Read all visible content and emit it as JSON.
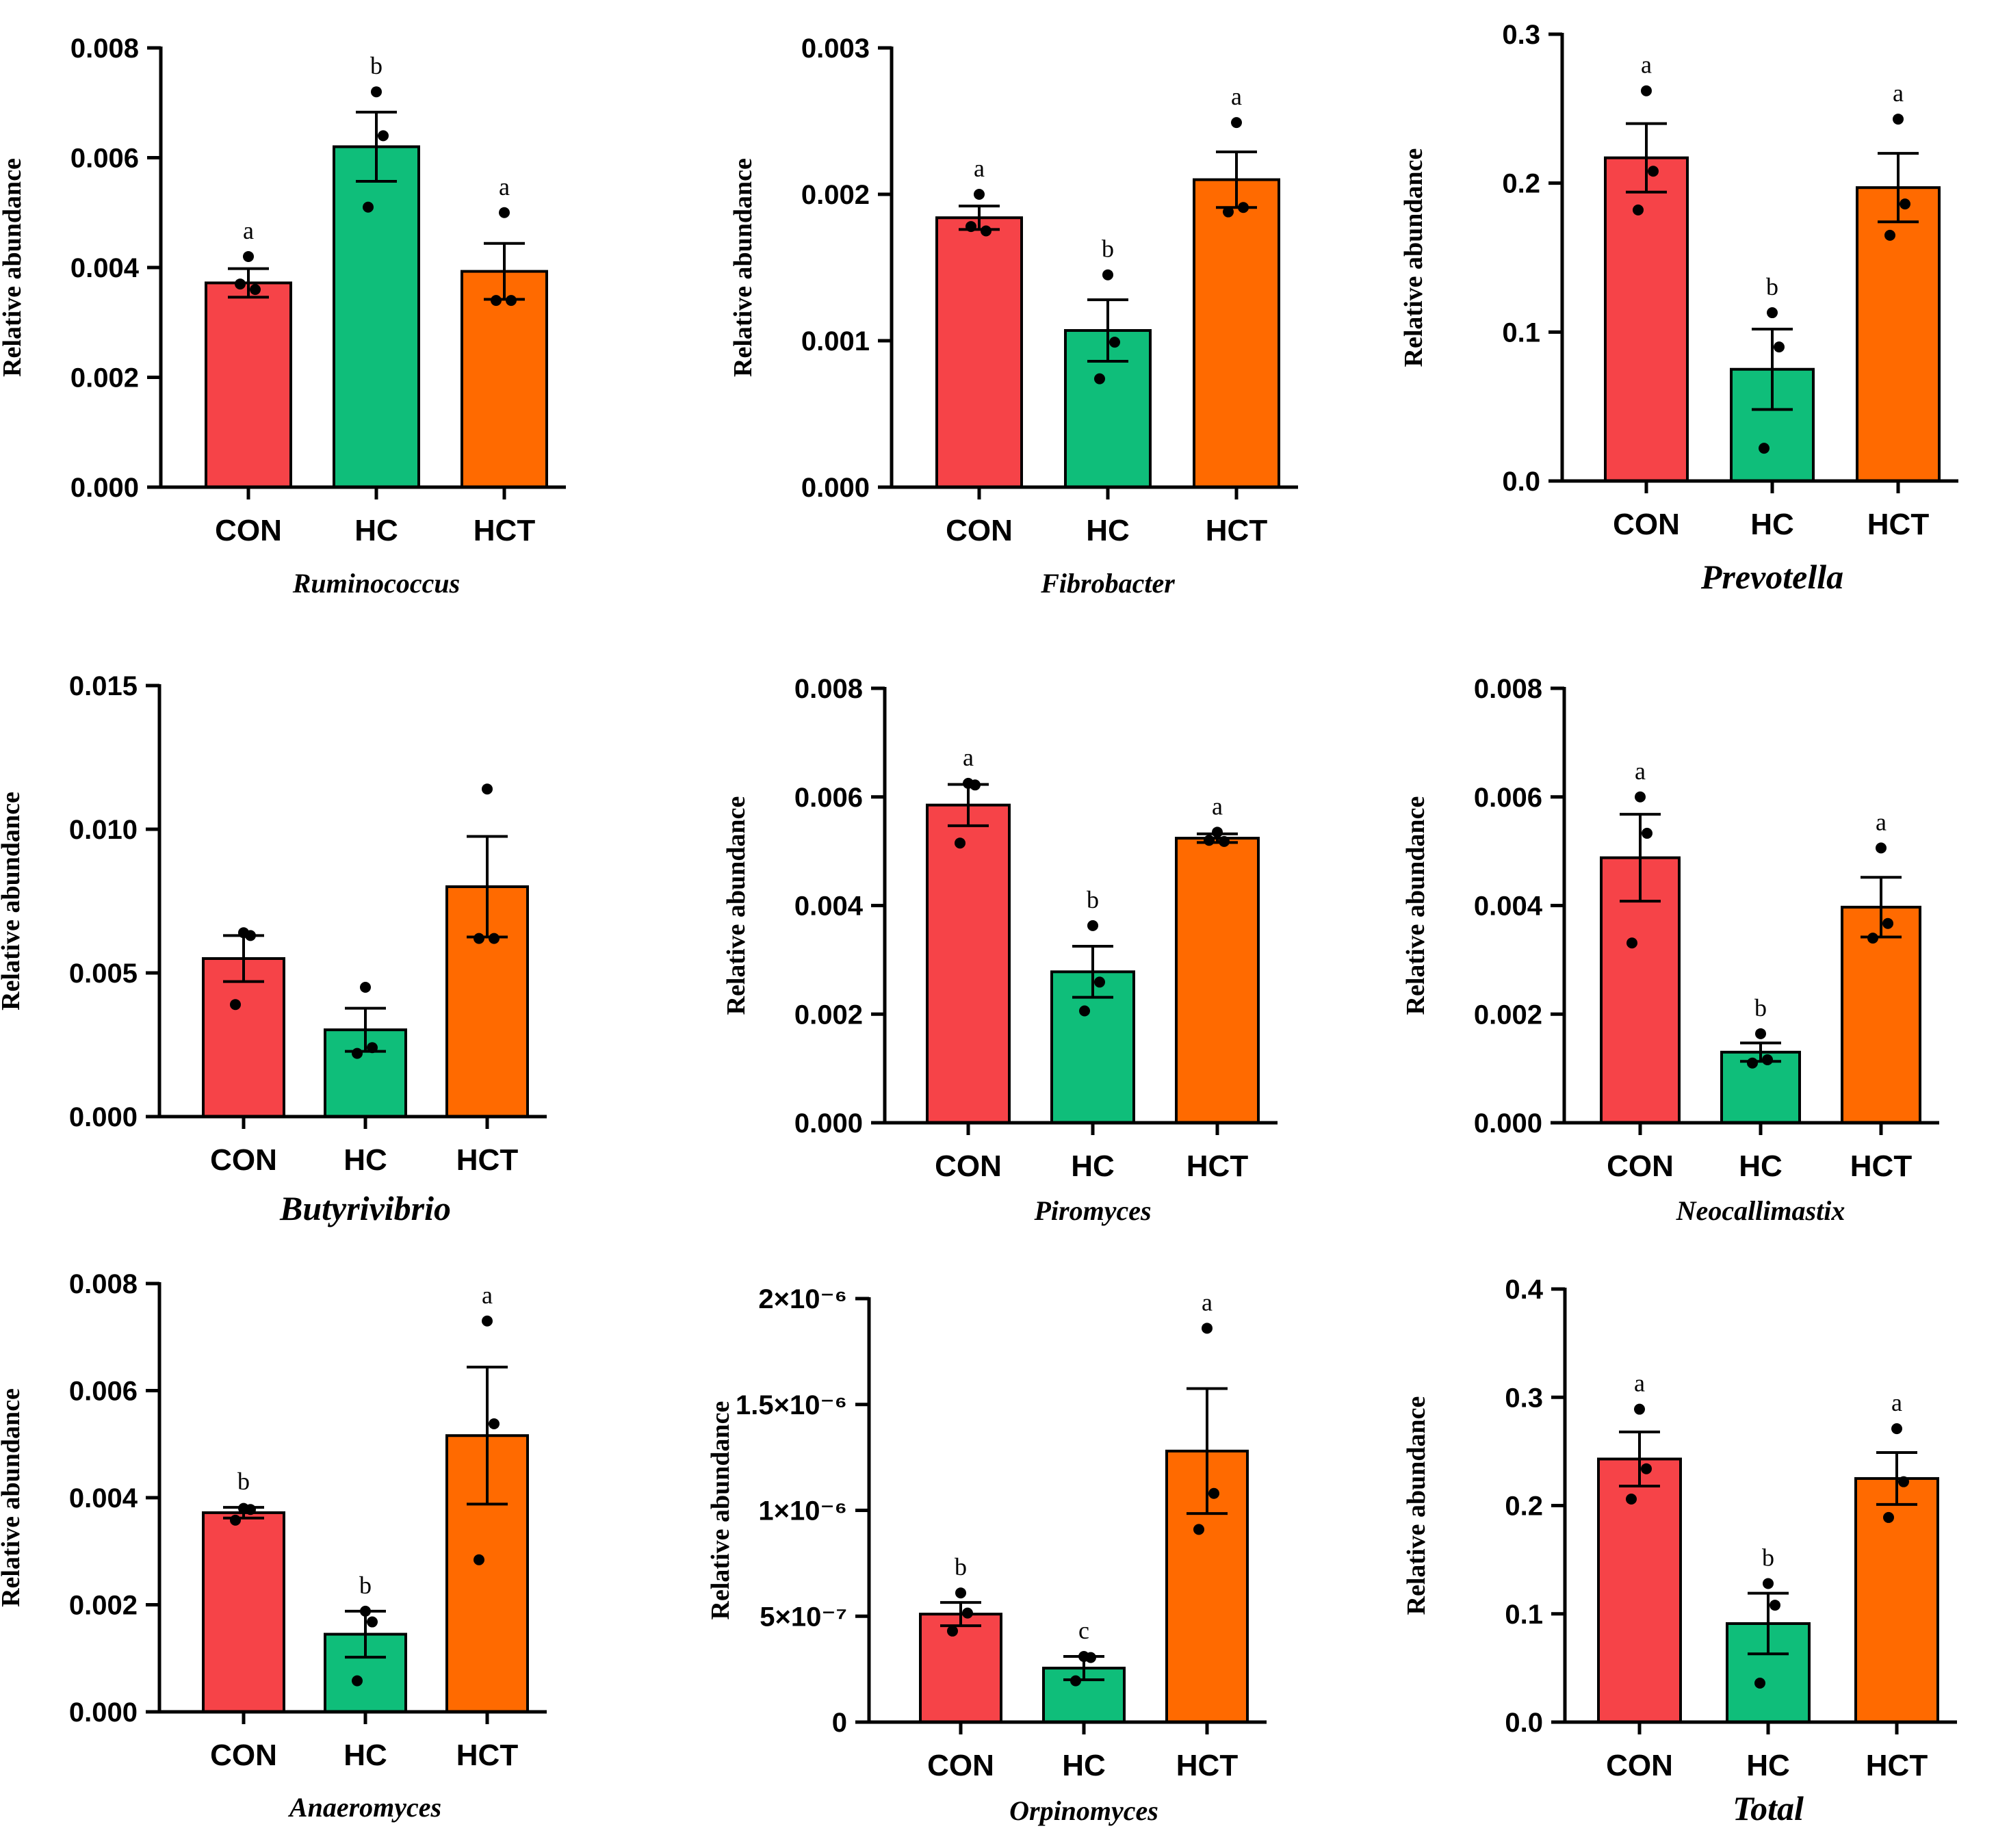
{
  "colors": {
    "CON": "#f64348",
    "HC": "#0fbe7a",
    "HCT": "#ff6a00",
    "axis": "#000000"
  },
  "chart_data": [
    {
      "type": "bar",
      "title": "Ruminococcus",
      "title_size": "small",
      "categories": [
        "CON",
        "HC",
        "HCT"
      ],
      "ylabel": "Relative abundance",
      "ylim": [
        0,
        0.008
      ],
      "yticks": [
        0,
        0.002,
        0.004,
        0.006,
        0.008
      ],
      "ytick_labels": [
        "0.000",
        "0.002",
        "0.004",
        "0.006",
        "0.008"
      ],
      "values": [
        0.00372,
        0.0062,
        0.00393
      ],
      "errors": [
        0.00026,
        0.00063,
        0.00051
      ],
      "points": [
        [
          0.0042,
          0.0036,
          0.0037
        ],
        [
          0.0072,
          0.0064,
          0.0051
        ],
        [
          0.005,
          0.0034,
          0.0034
        ]
      ],
      "letters": [
        "a",
        "b",
        "a"
      ]
    },
    {
      "type": "bar",
      "title": "Fibrobacter",
      "title_size": "small",
      "categories": [
        "CON",
        "HC",
        "HCT"
      ],
      "ylabel": "Relative abundance",
      "ylim": [
        0,
        0.003
      ],
      "yticks": [
        0,
        0.001,
        0.002,
        0.003
      ],
      "ytick_labels": [
        "0.000",
        "0.001",
        "0.002",
        "0.003"
      ],
      "values": [
        0.00184,
        0.00107,
        0.0021
      ],
      "errors": [
        8e-05,
        0.00021,
        0.00019
      ],
      "points": [
        [
          0.002,
          0.00175,
          0.00178
        ],
        [
          0.00145,
          0.00099,
          0.00074
        ],
        [
          0.00249,
          0.00191,
          0.00188
        ]
      ],
      "letters": [
        "a",
        "b",
        "a"
      ]
    },
    {
      "type": "bar",
      "title": "Prevotella",
      "title_size": "large",
      "categories": [
        "CON",
        "HC",
        "HCT"
      ],
      "ylabel": "Relative abundance",
      "ylim": [
        0,
        0.3
      ],
      "yticks": [
        0,
        0.1,
        0.2,
        0.3
      ],
      "ytick_labels": [
        "0.0",
        "0.1",
        "0.2",
        "0.3"
      ],
      "values": [
        0.217,
        0.075,
        0.197
      ],
      "errors": [
        0.023,
        0.027,
        0.023
      ],
      "points": [
        [
          0.262,
          0.208,
          0.182
        ],
        [
          0.113,
          0.09,
          0.022
        ],
        [
          0.243,
          0.186,
          0.165
        ]
      ],
      "letters": [
        "a",
        "b",
        "a"
      ]
    },
    {
      "type": "bar",
      "title": "Butyrivibrio",
      "title_size": "large",
      "categories": [
        "CON",
        "HC",
        "HCT"
      ],
      "ylabel": "Relative abundance",
      "ylim": [
        0,
        0.015
      ],
      "yticks": [
        0,
        0.005,
        0.01,
        0.015
      ],
      "ytick_labels": [
        "0.000",
        "0.005",
        "0.010",
        "0.015"
      ],
      "values": [
        0.0055,
        0.00302,
        0.008
      ],
      "errors": [
        0.0008,
        0.00075,
        0.00175
      ],
      "points": [
        [
          0.0064,
          0.0063,
          0.0039
        ],
        [
          0.0045,
          0.0024,
          0.0022
        ],
        [
          0.0114,
          0.0062,
          0.0062
        ]
      ],
      "letters": [
        "",
        "",
        ""
      ]
    },
    {
      "type": "bar",
      "title": "Piromyces",
      "title_size": "small",
      "categories": [
        "CON",
        "HC",
        "HCT"
      ],
      "ylabel": "Relative abundance",
      "ylim": [
        0,
        0.008
      ],
      "yticks": [
        0,
        0.002,
        0.004,
        0.006,
        0.008
      ],
      "ytick_labels": [
        "0.000",
        "0.002",
        "0.004",
        "0.006",
        "0.008"
      ],
      "values": [
        0.00585,
        0.00278,
        0.00524
      ],
      "errors": [
        0.00038,
        0.00047,
        8e-05
      ],
      "points": [
        [
          0.00625,
          0.00622,
          0.00515
        ],
        [
          0.00363,
          0.00259,
          0.00206
        ],
        [
          0.00535,
          0.00518,
          0.0052
        ]
      ],
      "letters": [
        "a",
        "b",
        "a"
      ]
    },
    {
      "type": "bar",
      "title": "Neocallimastix",
      "title_size": "small",
      "categories": [
        "CON",
        "HC",
        "HCT"
      ],
      "ylabel": "Relative abundance",
      "ylim": [
        0,
        0.008
      ],
      "yticks": [
        0,
        0.002,
        0.004,
        0.006,
        0.008
      ],
      "ytick_labels": [
        "0.000",
        "0.002",
        "0.004",
        "0.006",
        "0.008"
      ],
      "values": [
        0.00488,
        0.0013,
        0.00397
      ],
      "errors": [
        0.0008,
        0.00017,
        0.00055
      ],
      "points": [
        [
          0.006,
          0.00533,
          0.00331
        ],
        [
          0.00164,
          0.00116,
          0.0011
        ],
        [
          0.00506,
          0.00367,
          0.0034
        ]
      ],
      "letters": [
        "a",
        "b",
        "a"
      ]
    },
    {
      "type": "bar",
      "title": "Anaeromyces",
      "title_size": "small",
      "categories": [
        "CON",
        "HC",
        "HCT"
      ],
      "ylabel": "Relative abundance",
      "ylim": [
        0,
        0.008
      ],
      "yticks": [
        0,
        0.002,
        0.004,
        0.006,
        0.008
      ],
      "ytick_labels": [
        "0.000",
        "0.002",
        "0.004",
        "0.006",
        "0.008"
      ],
      "values": [
        0.00372,
        0.00145,
        0.00516
      ],
      "errors": [
        0.0001,
        0.00043,
        0.00128
      ],
      "points": [
        [
          0.0038,
          0.00378,
          0.00358
        ],
        [
          0.00188,
          0.00168,
          0.00058
        ],
        [
          0.0073,
          0.00538,
          0.00284
        ]
      ],
      "letters": [
        "b",
        "b",
        "a"
      ]
    },
    {
      "type": "bar",
      "title": "Orpinomyces",
      "title_size": "small",
      "categories": [
        "CON",
        "HC",
        "HCT"
      ],
      "ylabel": "Relative abundance",
      "ylim": [
        0,
        2e-06
      ],
      "yticks": [
        0,
        5e-07,
        1e-06,
        1.5e-06,
        2e-06
      ],
      "ytick_labels": [
        "0",
        "5×10⁻⁷",
        "1×10⁻⁶",
        "1.5×10⁻⁶",
        "2×10⁻⁶"
      ],
      "values": [
        5.1e-07,
        2.55e-07,
        1.28e-06
      ],
      "errors": [
        5.5e-08,
        5.5e-08,
        2.95e-07
      ],
      "points": [
        [
          6.1e-07,
          5.15e-07,
          4.3e-07
        ],
        [
          3.1e-07,
          3.05e-07,
          1.95e-07
        ],
        [
          1.86e-06,
          1.08e-06,
          9.1e-07
        ]
      ],
      "letters": [
        "b",
        "c",
        "a"
      ]
    },
    {
      "type": "bar",
      "title": "Total",
      "title_size": "large",
      "categories": [
        "CON",
        "HC",
        "HCT"
      ],
      "ylabel": "Relative abundance",
      "ylim": [
        0,
        0.4
      ],
      "yticks": [
        0,
        0.1,
        0.2,
        0.3,
        0.4
      ],
      "ytick_labels": [
        "0.0",
        "0.1",
        "0.2",
        "0.3",
        "0.4"
      ],
      "values": [
        0.243,
        0.091,
        0.225
      ],
      "errors": [
        0.025,
        0.028,
        0.024
      ],
      "points": [
        [
          0.289,
          0.234,
          0.206
        ],
        [
          0.128,
          0.108,
          0.036
        ],
        [
          0.271,
          0.222,
          0.189
        ]
      ],
      "letters": [
        "a",
        "b",
        "a"
      ]
    }
  ]
}
